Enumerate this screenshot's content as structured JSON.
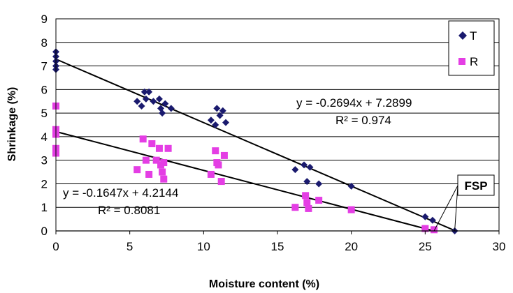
{
  "chart_data": {
    "type": "scatter",
    "xlabel": "Moisture content (%)",
    "ylabel": "Shrinkage (%)",
    "xlim": [
      0,
      30
    ],
    "ylim": [
      0,
      9
    ],
    "xticks": [
      "0",
      "5",
      "10",
      "15",
      "20",
      "25",
      "30"
    ],
    "yticks": [
      "0",
      "1",
      "2",
      "3",
      "4",
      "5",
      "6",
      "7",
      "8",
      "9"
    ],
    "grid": "horizontal",
    "legend_position": "top-right",
    "series": [
      {
        "name": "T",
        "color": "#1a1a6e",
        "marker": "diamond",
        "points": [
          [
            0,
            7.6
          ],
          [
            0,
            7.4
          ],
          [
            0,
            7.2
          ],
          [
            0,
            7.0
          ],
          [
            0,
            6.85
          ],
          [
            5.5,
            5.5
          ],
          [
            5.8,
            5.3
          ],
          [
            6.0,
            5.9
          ],
          [
            6.1,
            5.6
          ],
          [
            6.3,
            5.9
          ],
          [
            6.6,
            5.5
          ],
          [
            7.0,
            5.6
          ],
          [
            7.1,
            5.2
          ],
          [
            7.2,
            5.0
          ],
          [
            7.4,
            5.4
          ],
          [
            7.8,
            5.2
          ],
          [
            10.5,
            4.7
          ],
          [
            10.8,
            4.5
          ],
          [
            10.9,
            5.2
          ],
          [
            11.1,
            4.9
          ],
          [
            11.3,
            5.1
          ],
          [
            11.5,
            4.6
          ],
          [
            16.2,
            2.6
          ],
          [
            16.8,
            2.8
          ],
          [
            17.0,
            2.1
          ],
          [
            17.2,
            2.7
          ],
          [
            17.8,
            2.0
          ],
          [
            20.0,
            1.9
          ],
          [
            25.0,
            0.6
          ],
          [
            25.5,
            0.45
          ],
          [
            27.0,
            0.0
          ]
        ]
      },
      {
        "name": "R",
        "color": "#e43ee4",
        "marker": "square",
        "points": [
          [
            0,
            5.3
          ],
          [
            0,
            4.3
          ],
          [
            0,
            4.1
          ],
          [
            0,
            3.5
          ],
          [
            0,
            3.3
          ],
          [
            5.5,
            2.6
          ],
          [
            5.9,
            3.9
          ],
          [
            6.1,
            3.0
          ],
          [
            6.3,
            2.4
          ],
          [
            6.5,
            3.7
          ],
          [
            7.0,
            3.5
          ],
          [
            7.1,
            2.8
          ],
          [
            7.2,
            2.5
          ],
          [
            7.3,
            2.2
          ],
          [
            7.6,
            3.5
          ],
          [
            6.8,
            3.0
          ],
          [
            7.3,
            2.9
          ],
          [
            10.5,
            2.4
          ],
          [
            10.8,
            3.4
          ],
          [
            11.0,
            2.8
          ],
          [
            11.2,
            2.1
          ],
          [
            11.4,
            3.2
          ],
          [
            10.9,
            2.9
          ],
          [
            16.2,
            1.0
          ],
          [
            16.9,
            1.5
          ],
          [
            17.0,
            1.2
          ],
          [
            17.1,
            0.95
          ],
          [
            17.8,
            1.3
          ],
          [
            20.0,
            0.9
          ],
          [
            25.0,
            0.1
          ],
          [
            25.6,
            0.05
          ]
        ]
      }
    ],
    "trendlines": [
      {
        "series": "T",
        "slope": -0.2694,
        "intercept": 7.2899,
        "x_range": [
          0,
          27.06
        ]
      },
      {
        "series": "R",
        "slope": -0.1647,
        "intercept": 4.2144,
        "x_range": [
          0,
          25.59
        ]
      }
    ],
    "annotations": [
      {
        "text": "y = -0.2694x + 7.2899"
      },
      {
        "text": "R² = 0.974"
      },
      {
        "text": "y = -0.1647x + 4.2144"
      },
      {
        "text": "R² = 0.8081"
      },
      {
        "text": "FSP",
        "points_to": [
          [
            25.6,
            0.0
          ],
          [
            27.0,
            0.0
          ]
        ]
      }
    ]
  }
}
